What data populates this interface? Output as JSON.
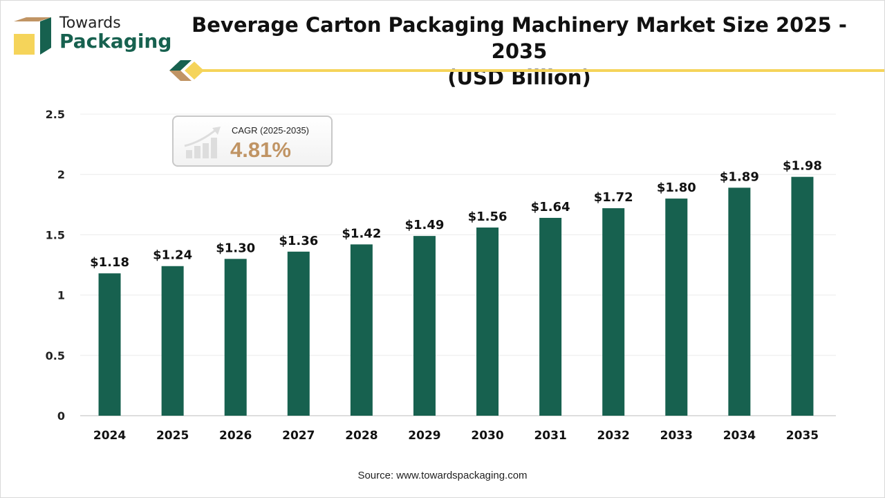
{
  "logo": {
    "line1": "Towards",
    "line2": "Packaging"
  },
  "header": {
    "title_line1": "Beverage Carton Packaging Machinery Market Size 2025 - 2035",
    "title_line2": "(USD Billion)"
  },
  "cagr": {
    "label": "CAGR (2025-2035)",
    "value": "4.81%"
  },
  "source": "Source: www.towardspackaging.com",
  "colors": {
    "bar": "#17614f",
    "accent": "#f5d45a",
    "cagr": "#c09464"
  },
  "chart_data": {
    "type": "bar",
    "title": "Beverage Carton Packaging Machinery Market Size 2025 - 2035 (USD Billion)",
    "categories": [
      "2024",
      "2025",
      "2026",
      "2027",
      "2028",
      "2029",
      "2030",
      "2031",
      "2032",
      "2033",
      "2034",
      "2035"
    ],
    "values": [
      1.18,
      1.24,
      1.3,
      1.36,
      1.42,
      1.49,
      1.56,
      1.64,
      1.72,
      1.8,
      1.89,
      1.98
    ],
    "data_labels": [
      "$1.18",
      "$1.24",
      "$1.30",
      "$1.36",
      "$1.42",
      "$1.49",
      "$1.56",
      "$1.64",
      "$1.72",
      "$1.80",
      "$1.89",
      "$1.98"
    ],
    "yticks": [
      "0",
      "0.5",
      "1",
      "1.5",
      "2",
      "2.5"
    ],
    "ylim": [
      0,
      2.5
    ],
    "grid": true,
    "xlabel": "",
    "ylabel": ""
  }
}
